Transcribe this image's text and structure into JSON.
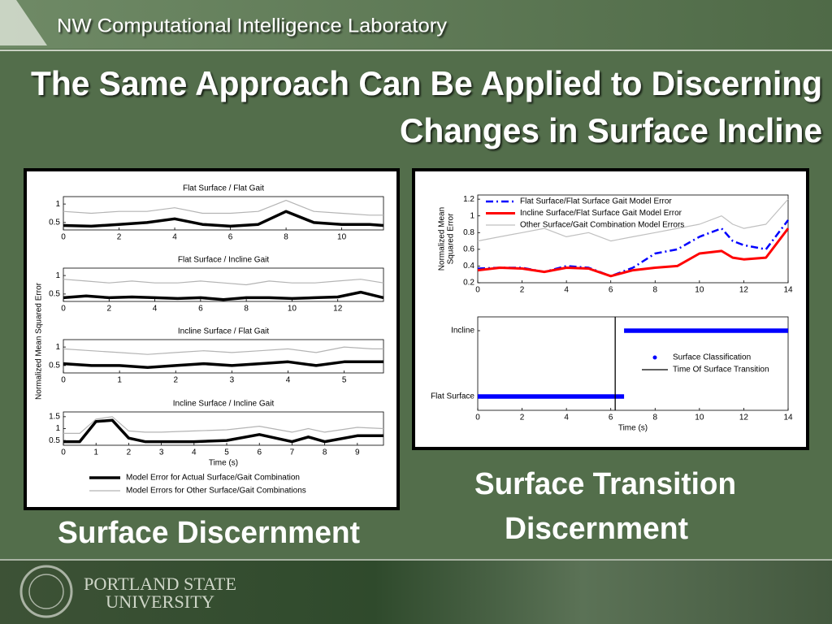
{
  "header": {
    "lab": "NW Computational Intelligence Laboratory"
  },
  "title": [
    "The Same Approach Can Be Applied to Discerning",
    "Changes in Surface Incline"
  ],
  "captions": {
    "left": "Surface Discernment",
    "right": [
      "Surface Transition",
      "Discernment"
    ]
  },
  "left_figure": {
    "ylabel": "Normalized Mean Squared Error"
  },
  "footer": {
    "university": [
      "PORTLAND STATE",
      "UNIVERSITY"
    ]
  },
  "chart_data": [
    {
      "type": "line",
      "title": "Flat Surface / Flat Gait",
      "x": [
        0,
        1,
        2,
        3,
        4,
        5,
        6,
        7,
        8,
        9,
        10,
        11,
        11.5
      ],
      "series": [
        {
          "color": "#b4b4b4",
          "values": [
            0.8,
            0.75,
            0.8,
            0.8,
            0.9,
            0.75,
            0.75,
            0.8,
            1.1,
            0.8,
            0.75,
            0.7,
            0.7
          ]
        },
        {
          "color": "#000000",
          "values": [
            0.42,
            0.4,
            0.45,
            0.5,
            0.6,
            0.45,
            0.4,
            0.45,
            0.8,
            0.5,
            0.45,
            0.45,
            0.42
          ]
        }
      ],
      "xlim": [
        0,
        11.5
      ],
      "xticks": [
        0,
        2,
        4,
        6,
        8,
        10
      ],
      "ylim": [
        0.3,
        1.2
      ],
      "yticks": [
        0.5,
        1
      ]
    },
    {
      "type": "line",
      "title": "Flat Surface / Incline Gait",
      "x": [
        0,
        1,
        2,
        3,
        4,
        5,
        6,
        7,
        8,
        9,
        10,
        11,
        12,
        13,
        14
      ],
      "series": [
        {
          "color": "#b4b4b4",
          "values": [
            0.9,
            0.85,
            0.8,
            0.85,
            0.8,
            0.8,
            0.85,
            0.8,
            0.75,
            0.85,
            0.8,
            0.8,
            0.85,
            0.9,
            0.8
          ]
        },
        {
          "color": "#000000",
          "values": [
            0.4,
            0.45,
            0.4,
            0.42,
            0.4,
            0.38,
            0.4,
            0.35,
            0.4,
            0.4,
            0.38,
            0.4,
            0.42,
            0.55,
            0.4
          ]
        }
      ],
      "xlim": [
        0,
        14
      ],
      "xticks": [
        0,
        2,
        4,
        6,
        8,
        10,
        12
      ],
      "ylim": [
        0.3,
        1.2
      ],
      "yticks": [
        0.5,
        1
      ]
    },
    {
      "type": "line",
      "title": "Incline Surface / Flat Gait",
      "x": [
        0,
        0.5,
        1,
        1.5,
        2,
        2.5,
        3,
        3.5,
        4,
        4.5,
        5,
        5.5,
        5.7
      ],
      "series": [
        {
          "color": "#b4b4b4",
          "values": [
            0.95,
            0.9,
            0.85,
            0.8,
            0.85,
            0.9,
            0.85,
            0.9,
            0.95,
            0.85,
            1.0,
            0.95,
            0.95
          ]
        },
        {
          "color": "#000000",
          "values": [
            0.55,
            0.5,
            0.5,
            0.45,
            0.5,
            0.55,
            0.5,
            0.55,
            0.6,
            0.5,
            0.6,
            0.6,
            0.6
          ]
        }
      ],
      "xlim": [
        0,
        5.7
      ],
      "xticks": [
        0,
        1,
        2,
        3,
        4,
        5
      ],
      "ylim": [
        0.3,
        1.2
      ],
      "yticks": [
        0.5,
        1
      ]
    },
    {
      "type": "line",
      "title": "Incline Surface / Incline Gait",
      "xlabel": "Time (s)",
      "x": [
        0,
        0.5,
        1,
        1.5,
        2,
        2.5,
        3,
        4,
        5,
        6,
        7,
        7.5,
        8,
        9,
        9.8
      ],
      "series": [
        {
          "name": "Model Errors for Other Surface/Gait Combinations",
          "color": "#b4b4b4",
          "values": [
            0.8,
            0.8,
            1.4,
            1.5,
            0.9,
            0.85,
            0.85,
            0.9,
            0.95,
            1.1,
            0.85,
            1.0,
            0.85,
            1.05,
            1.0
          ]
        },
        {
          "name": "Model Error for Actual Surface/Gait Combination",
          "color": "#000000",
          "values": [
            0.45,
            0.45,
            1.3,
            1.35,
            0.6,
            0.45,
            0.45,
            0.45,
            0.5,
            0.75,
            0.45,
            0.65,
            0.45,
            0.7,
            0.7
          ]
        }
      ],
      "xlim": [
        0,
        9.8
      ],
      "xticks": [
        0,
        1,
        2,
        3,
        4,
        5,
        6,
        7,
        8,
        9
      ],
      "ylim": [
        0.3,
        1.7
      ],
      "yticks": [
        0.5,
        1,
        1.5
      ],
      "legend": "bottom"
    },
    {
      "type": "line",
      "ylabel": [
        "Normalized Mean",
        "Squared Error"
      ],
      "x": [
        0,
        1,
        2,
        3,
        4,
        5,
        6,
        7,
        8,
        9,
        10,
        11,
        11.5,
        12,
        13,
        14
      ],
      "series": [
        {
          "name": "Flat Surface/Flat Surface Gait Model Error",
          "color": "#0000ff",
          "style": "dash-dot",
          "values": [
            0.37,
            0.38,
            0.38,
            0.33,
            0.4,
            0.38,
            0.28,
            0.38,
            0.55,
            0.6,
            0.75,
            0.85,
            0.7,
            0.65,
            0.6,
            0.95
          ]
        },
        {
          "name": "Incline Surface/Flat Surface Gait Model Error",
          "color": "#ff0000",
          "values": [
            0.35,
            0.38,
            0.37,
            0.33,
            0.38,
            0.37,
            0.28,
            0.35,
            0.38,
            0.4,
            0.55,
            0.58,
            0.5,
            0.48,
            0.5,
            0.85
          ]
        },
        {
          "name": "Other Surface/Gait Combination Model Errors",
          "color": "#c0c0c0",
          "values": [
            0.7,
            0.75,
            0.8,
            0.85,
            0.75,
            0.8,
            0.7,
            0.75,
            0.8,
            0.85,
            0.9,
            1.0,
            0.9,
            0.85,
            0.9,
            1.2
          ]
        }
      ],
      "xlim": [
        0,
        14
      ],
      "xticks": [
        0,
        2,
        4,
        6,
        8,
        10,
        12,
        14
      ],
      "ylim": [
        0.2,
        1.25
      ],
      "yticks": [
        0.2,
        0.4,
        0.6,
        0.8,
        1,
        1.2
      ],
      "legend": "upper left"
    },
    {
      "type": "scatter",
      "xlabel": "Time (s)",
      "ycategories": [
        "Flat Surface",
        "Incline"
      ],
      "series": [
        {
          "name": "Surface Classification",
          "color": "#0000ff",
          "ranges": [
            [
              0,
              6.6
            ],
            [
              6.6,
              14
            ]
          ]
        }
      ],
      "transition": {
        "name": "Time Of Surface Transition",
        "color": "#000000",
        "x": 6.2
      },
      "xlim": [
        0,
        14
      ],
      "xticks": [
        0,
        2,
        4,
        6,
        8,
        10,
        12,
        14
      ],
      "legend": "center right"
    }
  ]
}
